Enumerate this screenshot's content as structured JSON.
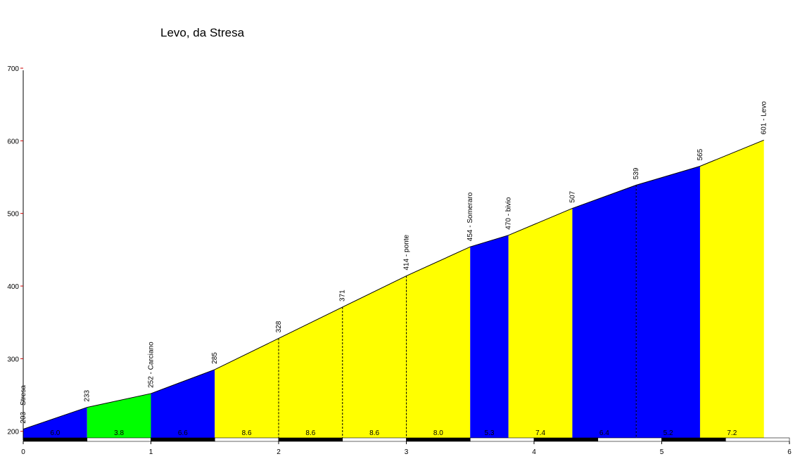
{
  "chart_data": {
    "type": "area",
    "title": "Levo, da Stresa",
    "xlabel": "",
    "ylabel": "",
    "xlim": [
      0,
      6
    ],
    "ylim": [
      190,
      700
    ],
    "x_ticks": [
      "0",
      "1",
      "2",
      "3",
      "4",
      "5",
      "6"
    ],
    "y_ticks": [
      "200",
      "300",
      "400",
      "500",
      "600",
      "700"
    ],
    "points": [
      {
        "x": 0.0,
        "y": 203,
        "label": "203 - Stresa"
      },
      {
        "x": 0.5,
        "y": 233,
        "label": "233"
      },
      {
        "x": 1.0,
        "y": 252,
        "label": "252 - Carciano"
      },
      {
        "x": 1.5,
        "y": 285,
        "label": "285"
      },
      {
        "x": 2.0,
        "y": 328,
        "label": "328"
      },
      {
        "x": 2.5,
        "y": 371,
        "label": "371"
      },
      {
        "x": 3.0,
        "y": 414,
        "label": "414 - ponte"
      },
      {
        "x": 3.5,
        "y": 454,
        "label": "454 - Someraro"
      },
      {
        "x": 3.8,
        "y": 470,
        "label": "470 - bivio"
      },
      {
        "x": 4.3,
        "y": 507,
        "label": "507"
      },
      {
        "x": 4.8,
        "y": 539,
        "label": "539"
      },
      {
        "x": 5.3,
        "y": 565,
        "label": "565"
      },
      {
        "x": 5.8,
        "y": 601,
        "label": "601 - Levo"
      }
    ],
    "segments": [
      {
        "gradient": "6.0",
        "color": "#0000ff"
      },
      {
        "gradient": "3.8",
        "color": "#00ff00"
      },
      {
        "gradient": "6.6",
        "color": "#0000ff"
      },
      {
        "gradient": "8.6",
        "color": "#ffff00"
      },
      {
        "gradient": "8.6",
        "color": "#ffff00"
      },
      {
        "gradient": "8.6",
        "color": "#ffff00"
      },
      {
        "gradient": "8.0",
        "color": "#ffff00"
      },
      {
        "gradient": "5.3",
        "color": "#0000ff"
      },
      {
        "gradient": "7.4",
        "color": "#ffff00"
      },
      {
        "gradient": "6.4",
        "color": "#0000ff"
      },
      {
        "gradient": "5.2",
        "color": "#0000ff"
      },
      {
        "gradient": "7.2",
        "color": "#ffff00"
      }
    ],
    "dashed_boundaries": [
      2.0,
      2.5,
      3.0,
      4.8
    ],
    "grid": false,
    "legend": "none"
  }
}
